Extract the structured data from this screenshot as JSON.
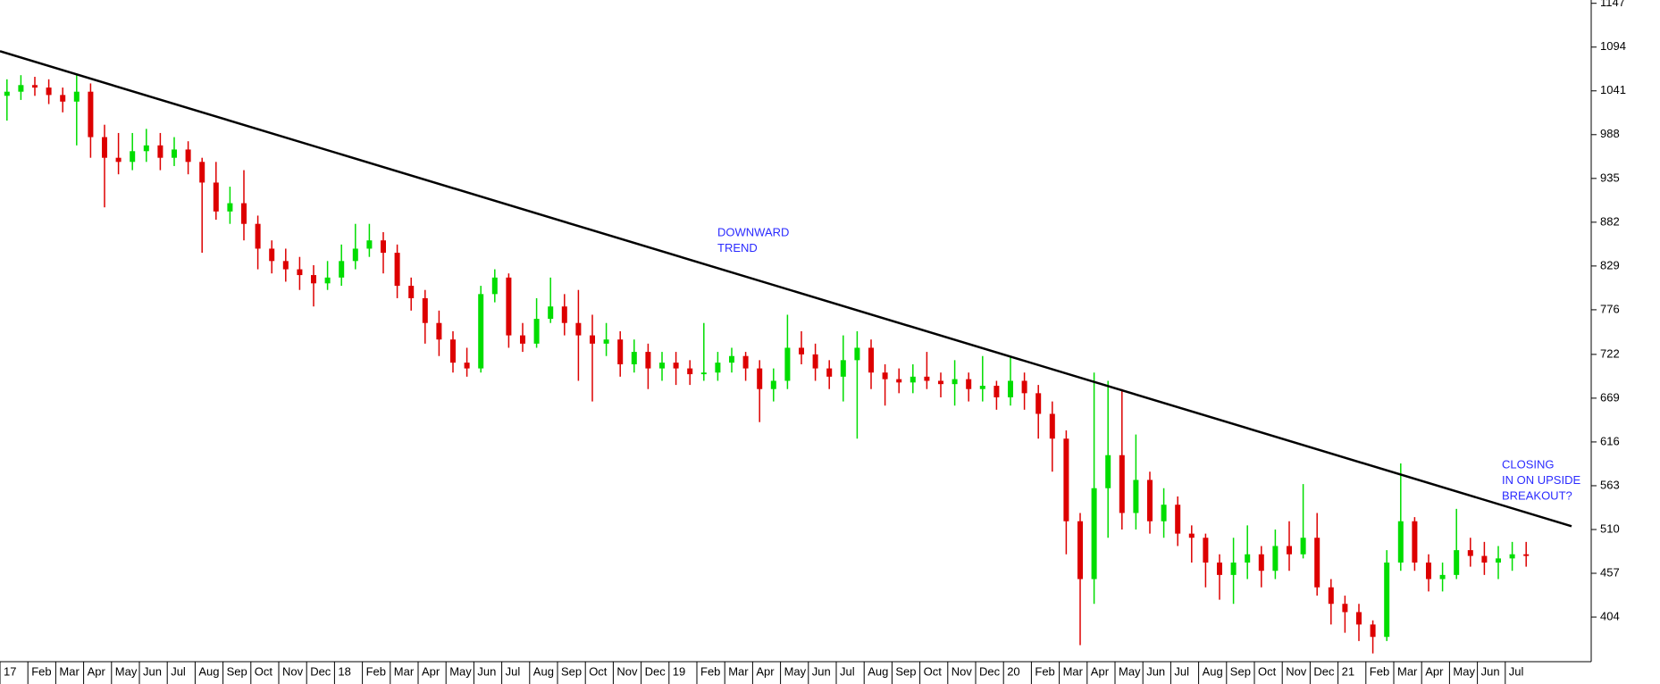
{
  "chart_data": {
    "type": "candlestick",
    "categories": [
      "17",
      null,
      "Feb",
      null,
      "Mar",
      null,
      "Apr",
      null,
      "May",
      null,
      "Jun",
      null,
      "Jul",
      null,
      "Aug",
      null,
      "Sep",
      null,
      "Oct",
      null,
      "Nov",
      null,
      "Dec",
      null,
      "18",
      null,
      "Feb",
      null,
      "Mar",
      null,
      "Apr",
      null,
      "May",
      null,
      "Jun",
      null,
      "Jul",
      null,
      "Aug",
      null,
      "Sep",
      null,
      "Oct",
      null,
      "Nov",
      null,
      "Dec",
      null,
      "19",
      null,
      "Feb",
      null,
      "Mar",
      null,
      "Apr",
      null,
      "May",
      null,
      "Jun",
      null,
      "Jul",
      null,
      "Aug",
      null,
      "Sep",
      null,
      "Oct",
      null,
      "Nov",
      null,
      "Dec",
      null,
      "20",
      null,
      "Feb",
      null,
      "Mar",
      null,
      "Apr",
      null,
      "May",
      null,
      "Jun",
      null,
      "Jul",
      null,
      "Aug",
      null,
      "Sep",
      null,
      "Oct",
      null,
      "Nov",
      null,
      "Dec",
      null,
      "21",
      null,
      "Feb",
      null,
      "Mar",
      null,
      "Apr",
      null,
      "May",
      null,
      "Jun",
      null,
      "Jul",
      null
    ],
    "open": [
      1035,
      1040,
      1048,
      1045,
      1036,
      1028,
      1040,
      985,
      960,
      955,
      968,
      975,
      960,
      970,
      955,
      930,
      895,
      905,
      880,
      850,
      835,
      825,
      818,
      808,
      815,
      835,
      850,
      860,
      845,
      805,
      790,
      760,
      740,
      712,
      705,
      795,
      815,
      745,
      735,
      765,
      780,
      760,
      745,
      735,
      740,
      710,
      725,
      705,
      712,
      705,
      698,
      700,
      712,
      720,
      705,
      680,
      690,
      730,
      722,
      705,
      695,
      715,
      730,
      700,
      692,
      688,
      695,
      690,
      686,
      692,
      680,
      684,
      670,
      690,
      675,
      650,
      620,
      520,
      450,
      560,
      600,
      530,
      570,
      520,
      540,
      505,
      500,
      470,
      455,
      470,
      480,
      460,
      490,
      480,
      500,
      440,
      420,
      410,
      395,
      380,
      470,
      520,
      470,
      450,
      455,
      485,
      478,
      470,
      475,
      480
    ],
    "high": [
      1055,
      1060,
      1058,
      1055,
      1045,
      1060,
      1050,
      1000,
      990,
      990,
      995,
      990,
      985,
      980,
      960,
      955,
      925,
      945,
      890,
      860,
      850,
      840,
      830,
      835,
      855,
      880,
      880,
      870,
      855,
      815,
      800,
      775,
      750,
      730,
      805,
      825,
      820,
      760,
      790,
      815,
      795,
      800,
      770,
      760,
      750,
      740,
      735,
      725,
      725,
      715,
      760,
      725,
      730,
      725,
      715,
      705,
      770,
      750,
      735,
      715,
      745,
      750,
      740,
      710,
      705,
      710,
      725,
      700,
      715,
      700,
      720,
      690,
      720,
      700,
      685,
      665,
      630,
      530,
      700,
      690,
      680,
      625,
      580,
      560,
      550,
      515,
      505,
      480,
      500,
      515,
      490,
      510,
      520,
      565,
      530,
      450,
      430,
      420,
      400,
      485,
      590,
      525,
      480,
      470,
      535,
      500,
      495,
      490,
      495,
      495
    ],
    "low": [
      1005,
      1030,
      1035,
      1025,
      1015,
      975,
      960,
      900,
      940,
      945,
      955,
      945,
      950,
      940,
      845,
      885,
      880,
      860,
      825,
      820,
      810,
      800,
      780,
      800,
      805,
      825,
      840,
      820,
      790,
      775,
      735,
      720,
      700,
      695,
      700,
      785,
      730,
      725,
      730,
      760,
      745,
      690,
      665,
      720,
      695,
      700,
      680,
      690,
      685,
      685,
      690,
      690,
      700,
      690,
      640,
      665,
      680,
      710,
      690,
      680,
      665,
      620,
      680,
      660,
      675,
      675,
      680,
      670,
      660,
      665,
      665,
      655,
      660,
      655,
      620,
      580,
      480,
      370,
      420,
      500,
      510,
      510,
      505,
      500,
      490,
      470,
      440,
      425,
      420,
      450,
      440,
      450,
      460,
      475,
      430,
      395,
      385,
      375,
      360,
      375,
      460,
      460,
      435,
      435,
      450,
      465,
      455,
      450,
      460,
      465
    ],
    "close": [
      1040,
      1048,
      1045,
      1036,
      1028,
      1040,
      985,
      960,
      955,
      968,
      975,
      960,
      970,
      955,
      930,
      895,
      905,
      880,
      850,
      835,
      825,
      818,
      808,
      815,
      835,
      850,
      860,
      845,
      805,
      790,
      760,
      740,
      712,
      705,
      795,
      815,
      745,
      735,
      765,
      780,
      760,
      745,
      735,
      740,
      710,
      725,
      705,
      712,
      705,
      698,
      700,
      712,
      720,
      705,
      680,
      690,
      730,
      722,
      705,
      695,
      715,
      730,
      700,
      692,
      688,
      695,
      690,
      686,
      692,
      680,
      684,
      670,
      690,
      675,
      650,
      620,
      520,
      450,
      560,
      600,
      530,
      570,
      520,
      540,
      505,
      500,
      470,
      455,
      470,
      480,
      460,
      490,
      480,
      500,
      440,
      420,
      410,
      395,
      380,
      470,
      520,
      470,
      450,
      455,
      485,
      478,
      470,
      475,
      480,
      478
    ],
    "up_color": "#00dd00",
    "down_color": "#dd0000",
    "ylim": [
      350,
      1151
    ],
    "yticks": [
      404,
      457,
      510,
      563,
      616,
      669,
      722,
      776,
      829,
      882,
      935,
      988,
      1041,
      1094,
      1147
    ],
    "trendline": {
      "values": [
        1089,
        514
      ],
      "color": "#000000"
    },
    "annotations": [
      {
        "lines": [
          "DOWNWARD",
          "TREND"
        ],
        "color": "#2b2bff"
      },
      {
        "lines": [
          "CLOSING",
          "IN ON UPSIDE",
          "BREAKOUT?"
        ],
        "color": "#2b2bff"
      }
    ]
  }
}
